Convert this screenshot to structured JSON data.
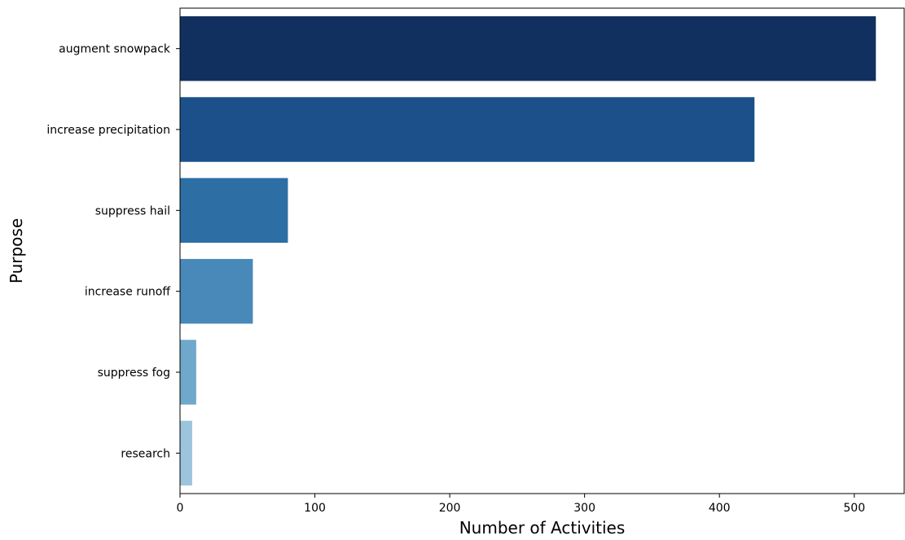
{
  "chart_data": {
    "type": "bar",
    "orientation": "horizontal",
    "title": "",
    "xlabel": "Number of Activities",
    "ylabel": "Purpose",
    "categories": [
      "augment snowpack",
      "increase precipitation",
      "suppress hail",
      "increase runoff",
      "suppress fog",
      "research"
    ],
    "values": [
      516,
      426,
      80,
      54,
      12,
      9
    ],
    "colors": [
      "#12305f",
      "#1b508a",
      "#2d6ea4",
      "#4889ba",
      "#6fa8ca",
      "#9cc4dc"
    ],
    "xlim": [
      0,
      537
    ],
    "xticks": [
      0,
      100,
      200,
      300,
      400,
      500
    ],
    "grid": false,
    "legend": false
  }
}
